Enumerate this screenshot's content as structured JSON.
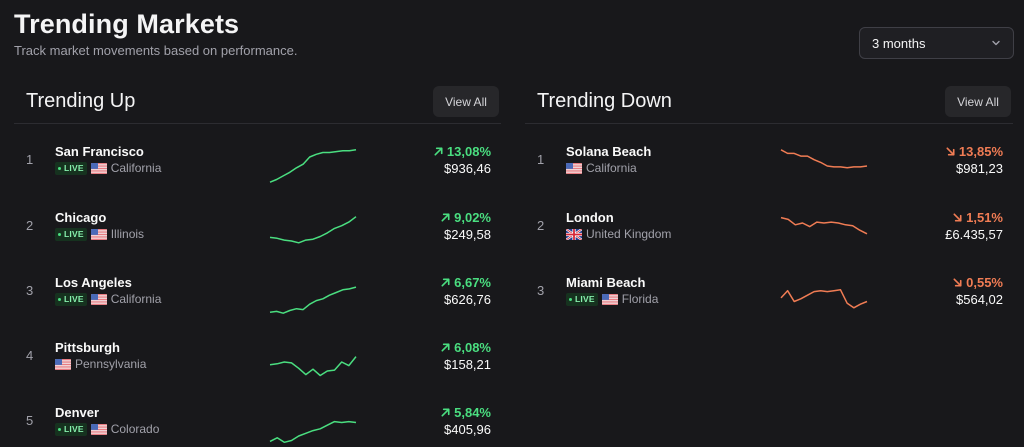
{
  "page": {
    "title": "Trending Markets",
    "subtitle": "Track market movements based on performance."
  },
  "period_select": {
    "value": "3 months"
  },
  "colors": {
    "up": "#4ade80",
    "down": "#f07c54"
  },
  "trending_up": {
    "title": "Trending Up",
    "view_all": "View All",
    "rows": [
      {
        "rank": "1",
        "city": "San Francisco",
        "live": "LIVE",
        "flag": "flag-us-icon",
        "region": "California",
        "change": "13,08%",
        "price": "$936,46",
        "trend": [
          2,
          5,
          9,
          13,
          18,
          22,
          30,
          33,
          35,
          35,
          36,
          37,
          37,
          38
        ]
      },
      {
        "rank": "2",
        "city": "Chicago",
        "live": "LIVE",
        "flag": "flag-us-icon",
        "region": "Illinois",
        "change": "9,02%",
        "price": "$249,58",
        "trend": [
          14,
          13,
          11,
          10,
          8,
          11,
          12,
          15,
          19,
          24,
          27,
          31,
          37
        ]
      },
      {
        "rank": "3",
        "city": "Los Angeles",
        "live": "LIVE",
        "flag": "flag-us-icon",
        "region": "California",
        "change": "6,67%",
        "price": "$626,76",
        "trend": [
          3,
          4,
          2,
          5,
          7,
          6,
          12,
          16,
          18,
          22,
          25,
          28,
          29,
          31
        ]
      },
      {
        "rank": "4",
        "city": "Pittsburgh",
        "live": "",
        "flag": "flag-us-icon",
        "region": "Pennsylvania",
        "change": "6,08%",
        "price": "$158,21",
        "trend": [
          17,
          18,
          20,
          19,
          13,
          6,
          12,
          5,
          10,
          11,
          20,
          16,
          26
        ]
      },
      {
        "rank": "5",
        "city": "Denver",
        "live": "LIVE",
        "flag": "flag-us-icon",
        "region": "Colorado",
        "change": "5,84%",
        "price": "$405,96",
        "trend": [
          4,
          8,
          3,
          5,
          10,
          13,
          16,
          18,
          22,
          26,
          25,
          26,
          25
        ]
      }
    ]
  },
  "trending_down": {
    "title": "Trending Down",
    "view_all": "View All",
    "rows": [
      {
        "rank": "1",
        "city": "Solana Beach",
        "live": "",
        "flag": "flag-us-icon",
        "region": "California",
        "change": "13,85%",
        "price": "$981,23",
        "trend": [
          38,
          34,
          34,
          31,
          31,
          27,
          24,
          20,
          19,
          19,
          18,
          19,
          19,
          20
        ]
      },
      {
        "rank": "2",
        "city": "London",
        "live": "",
        "flag": "flag-uk-icon",
        "region": "United Kingdom",
        "change": "1,51%",
        "price": "£6.435,57",
        "trend": [
          36,
          34,
          28,
          30,
          26,
          31,
          30,
          31,
          30,
          28,
          27,
          22,
          18
        ]
      },
      {
        "rank": "3",
        "city": "Miami Beach",
        "live": "LIVE",
        "flag": "flag-us-icon",
        "region": "Florida",
        "change": "0,55%",
        "price": "$564,02",
        "trend": [
          19,
          27,
          15,
          18,
          22,
          26,
          27,
          26,
          27,
          28,
          13,
          8,
          12,
          15
        ]
      }
    ]
  }
}
